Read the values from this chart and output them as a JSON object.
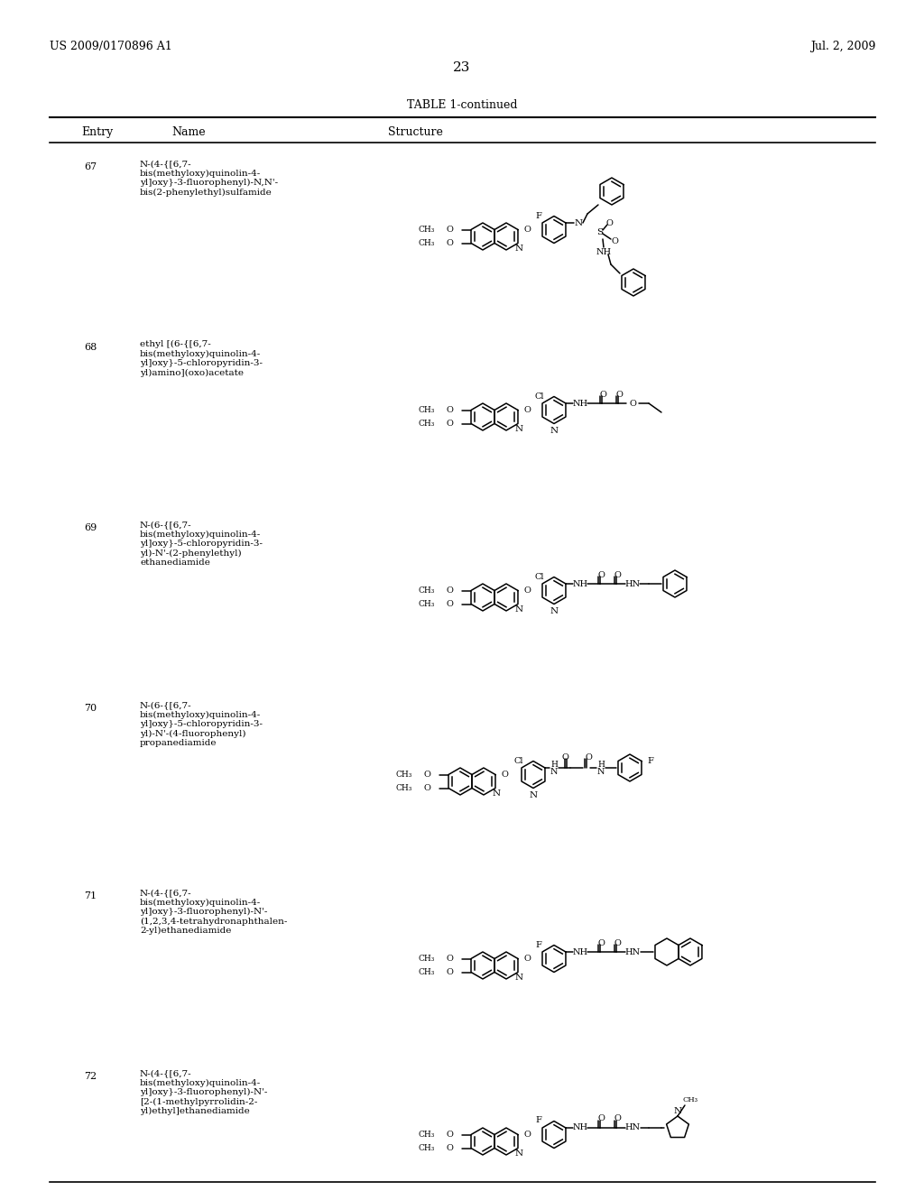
{
  "page_header_left": "US 2009/0170896 A1",
  "page_header_right": "Jul. 2, 2009",
  "page_number": "23",
  "table_title": "TABLE 1-continued",
  "col_headers": [
    "Entry",
    "Name",
    "Structure"
  ],
  "entries": [
    {
      "number": "67",
      "name": "N-(4-{[6,7-\nbis(methyloxy)quinolin-4-\nyl]oxy}-3-fluorophenyl)-N,N'-\nbis(2-phenylethyl)sulfamide"
    },
    {
      "number": "68",
      "name": "ethyl [(6-{[6,7-\nbis(methyloxy)quinolin-4-\nyl]oxy}-5-chloropyridin-3-\nyl)amino](oxo)acetate"
    },
    {
      "number": "69",
      "name": "N-(6-{[6,7-\nbis(methyloxy)quinolin-4-\nyl]oxy}-5-chloropyridin-3-\nyl)-N'-(2-phenylethyl)\nethanediamide"
    },
    {
      "number": "70",
      "name": "N-(6-{[6,7-\nbis(methyloxy)quinolin-4-\nyl]oxy}-5-chloropyridin-3-\nyl)-N'-(4-fluorophenyl)\npropanediamide"
    },
    {
      "number": "71",
      "name": "N-(4-{[6,7-\nbis(methyloxy)quinolin-4-\nyl]oxy}-3-fluorophenyl)-N'-\n(1,2,3,4-tetrahydronaphthalen-\n2-yl)ethanediamide"
    },
    {
      "number": "72",
      "name": "N-(4-{[6,7-\nbis(methyloxy)quinolin-4-\nyl]oxy}-3-fluorophenyl)-N'-\n[2-(1-methylpyrrolidin-2-\nyl)ethyl]ethanediamide"
    }
  ],
  "bg_color": "#ffffff",
  "text_color": "#000000",
  "row_tops": [
    162,
    362,
    562,
    762,
    970,
    1170
  ],
  "font_size_header": 9,
  "font_size_entry": 8,
  "font_size_col_header": 9,
  "font_size_page": 9,
  "font_size_table_title": 9,
  "font_size_page_num": 11
}
